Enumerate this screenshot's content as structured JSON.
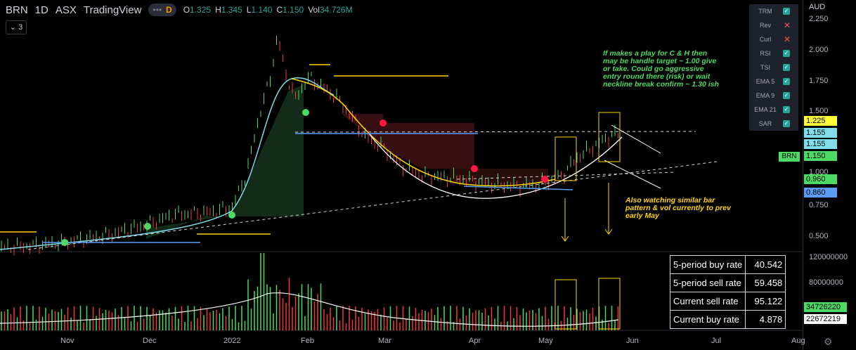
{
  "header": {
    "symbol": "BRN",
    "interval": "1D",
    "exchange": "ASX",
    "source": "TradingView",
    "badge_letter": "D",
    "open_label": "O",
    "open": "1.325",
    "high_label": "H",
    "high": "1.345",
    "low_label": "L",
    "low": "1.140",
    "close_label": "C",
    "close": "1.150",
    "vol_label": "Vol",
    "vol": "34.726M"
  },
  "collapse_button": {
    "label": "3"
  },
  "indicator_legend": [
    {
      "name": "TRM",
      "on": true
    },
    {
      "name": "Rev",
      "on": false
    },
    {
      "name": "Curl",
      "on": false
    },
    {
      "name": "RSI",
      "on": true
    },
    {
      "name": "TSI",
      "on": true
    },
    {
      "name": "EMA 5",
      "on": true
    },
    {
      "name": "EMA 9",
      "on": true
    },
    {
      "name": "EMA 21",
      "on": true
    },
    {
      "name": "SAR",
      "on": true
    }
  ],
  "price_axis": {
    "currency": "AUD",
    "ticks": [
      "2.250",
      "2.000",
      "1.750",
      "1.500",
      "1.000",
      "0.750",
      "0.500"
    ],
    "tags": [
      {
        "text": "1.225",
        "color": "#ffff33"
      },
      {
        "text": "1.155",
        "color": "#80deea"
      },
      {
        "text": "1.155",
        "color": "#80deea"
      },
      {
        "text": "1.150",
        "color": "#4cd964"
      },
      {
        "text": "0.960",
        "color": "#4cd964"
      },
      {
        "text": "0.860",
        "color": "#5b9cf6"
      }
    ],
    "symbol_tag": "BRN"
  },
  "volume_axis": {
    "ticks": [
      "120000000",
      "80000000"
    ],
    "tags": [
      {
        "text": "34726220",
        "color": "#4cd964"
      },
      {
        "text": "22672219",
        "color": "#ffffff"
      }
    ]
  },
  "time_axis": [
    "Nov",
    "Dec",
    "2022",
    "Feb",
    "Mar",
    "Apr",
    "May",
    "Jun",
    "Jul",
    "Aug"
  ],
  "annotations": {
    "green_note": "If makes a play for C & H then may be handle target ~ 1.00 give or take. Could go aggressive entry round there (risk) or wait neckline break confirm ~ 1.30 ish",
    "yellow_note": "Also watching similar bar pattern & vol currently to prev early May"
  },
  "rate_table": [
    {
      "label": "5-period buy rate",
      "value": "40.542"
    },
    {
      "label": "5-period sell rate",
      "value": "59.458"
    },
    {
      "label": "Current sell rate",
      "value": "95.122"
    },
    {
      "label": "Current buy rate",
      "value": "4.878"
    }
  ],
  "colors": {
    "up": "#4cd964",
    "down": "#ef3b3b",
    "ema": "#80deea",
    "curve_yellow": "#ffd600",
    "background": "#000000"
  }
}
